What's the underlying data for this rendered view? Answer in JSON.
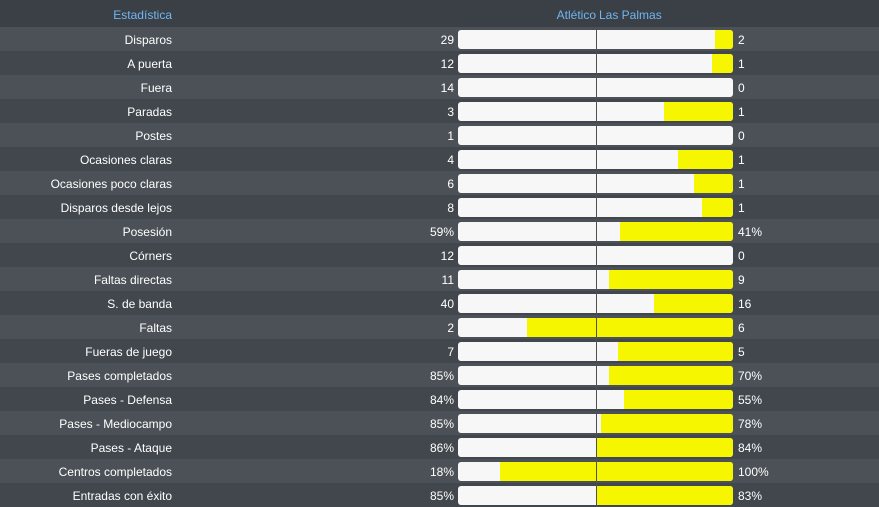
{
  "header": {
    "stat_label": "Estadística",
    "home_team": "Atlético",
    "away_team": "Las Palmas"
  },
  "colors": {
    "accent_header": "#6fb6f2",
    "away_fill": "#f6f600",
    "home_bar": "#f7f7f7"
  },
  "stats": [
    {
      "label": "Disparos",
      "home": "29",
      "away": "2",
      "away_share": 0.065
    },
    {
      "label": "A puerta",
      "home": "12",
      "away": "1",
      "away_share": 0.077
    },
    {
      "label": "Fuera",
      "home": "14",
      "away": "0",
      "away_share": 0
    },
    {
      "label": "Paradas",
      "home": "3",
      "away": "1",
      "away_share": 0.25
    },
    {
      "label": "Postes",
      "home": "1",
      "away": "0",
      "away_share": 0
    },
    {
      "label": "Ocasiones claras",
      "home": "4",
      "away": "1",
      "away_share": 0.2
    },
    {
      "label": "Ocasiones poco claras",
      "home": "6",
      "away": "1",
      "away_share": 0.143
    },
    {
      "label": "Disparos desde lejos",
      "home": "8",
      "away": "1",
      "away_share": 0.111
    },
    {
      "label": "Posesión",
      "home": "59%",
      "away": "41%",
      "away_share": 0.41
    },
    {
      "label": "Córners",
      "home": "12",
      "away": "0",
      "away_share": 0
    },
    {
      "label": "Faltas directas",
      "home": "11",
      "away": "9",
      "away_share": 0.45
    },
    {
      "label": "S. de banda",
      "home": "40",
      "away": "16",
      "away_share": 0.286
    },
    {
      "label": "Faltas",
      "home": "2",
      "away": "6",
      "away_share": 0.75
    },
    {
      "label": "Fueras de juego",
      "home": "7",
      "away": "5",
      "away_share": 0.417
    },
    {
      "label": "Pases completados",
      "home": "85%",
      "away": "70%",
      "away_share": 0.452
    },
    {
      "label": "Pases - Defensa",
      "home": "84%",
      "away": "55%",
      "away_share": 0.396
    },
    {
      "label": "Pases - Mediocampo",
      "home": "85%",
      "away": "78%",
      "away_share": 0.479
    },
    {
      "label": "Pases - Ataque",
      "home": "86%",
      "away": "84%",
      "away_share": 0.494
    },
    {
      "label": "Centros completados",
      "home": "18%",
      "away": "100%",
      "away_share": 0.847
    },
    {
      "label": "Entradas con éxito",
      "home": "85%",
      "away": "83%",
      "away_share": 0.494
    }
  ]
}
